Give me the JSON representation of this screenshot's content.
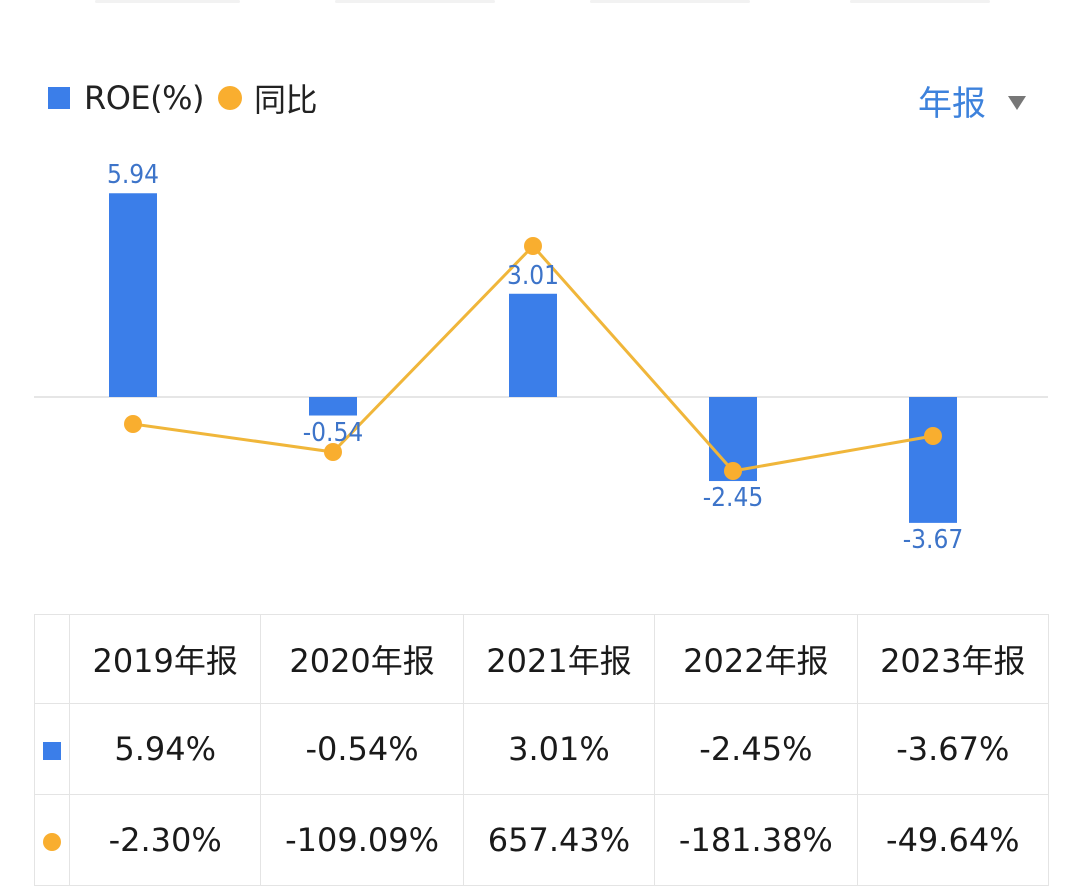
{
  "legend": {
    "items": [
      {
        "label": "ROE(%)",
        "marker": "square",
        "color": "#3b7ee9"
      },
      {
        "label": "同比",
        "marker": "circle",
        "color": "#f9ae2f"
      }
    ]
  },
  "period_selector": {
    "label": "年报",
    "icon": "caret-down-icon"
  },
  "colors": {
    "bar": "#3b7ee9",
    "line": "#f9ae2f",
    "label": "#3d74c9",
    "positive": "#d9453f",
    "negative": "#2d9b6f",
    "accent": "#3d82dc"
  },
  "chart_data": {
    "type": "bar",
    "title": "",
    "categories": [
      "2019年报",
      "2020年报",
      "2021年报",
      "2022年报",
      "2023年报"
    ],
    "series": [
      {
        "name": "ROE(%)",
        "type": "bar",
        "values": [
          5.94,
          -0.54,
          3.01,
          -2.45,
          -3.67
        ],
        "color": "#3b7ee9"
      },
      {
        "name": "同比",
        "type": "line",
        "values": [
          -2.3,
          -109.09,
          657.43,
          -181.38,
          -49.64
        ],
        "unit": "%",
        "color": "#f9ae2f",
        "secondary_axis": true
      }
    ],
    "data_labels": [
      "5.94",
      "-0.54",
      "3.01",
      "-2.45",
      "-3.67"
    ],
    "xlabel": "",
    "ylabel": "",
    "grid": false,
    "legend_position": "top-left",
    "zero_line": true
  },
  "table": {
    "headers": [
      "2019年报",
      "2020年报",
      "2021年报",
      "2022年报",
      "2023年报"
    ],
    "rows": [
      {
        "marker": "square",
        "values": [
          "5.94%",
          "-0.54%",
          "3.01%",
          "-2.45%",
          "-3.67%"
        ]
      },
      {
        "marker": "circle",
        "values": [
          "-2.30%",
          "-109.09%",
          "657.43%",
          "-181.38%",
          "-49.64%"
        ],
        "signs": [
          "neg",
          "neg",
          "pos",
          "neg",
          "neg"
        ]
      }
    ]
  }
}
